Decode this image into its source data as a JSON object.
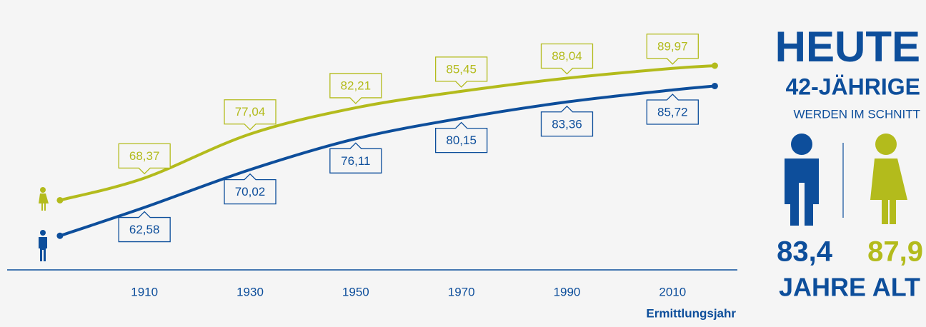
{
  "chart_data": {
    "type": "line",
    "x": [
      1894,
      1910,
      1930,
      1950,
      1970,
      1990,
      2010,
      2018
    ],
    "xlim": [
      1884,
      2022
    ],
    "xticks": [
      1910,
      1930,
      1950,
      1970,
      1990,
      2010
    ],
    "ylim": [
      50,
      95
    ],
    "x_label": "Ermittlungsjahr",
    "series": [
      {
        "color": "#b3bb1c",
        "values": [
          64,
          68.37,
          77.04,
          82.21,
          85.45,
          88.04,
          89.97,
          90.5
        ],
        "value_labels": [
          null,
          "68,37",
          "77,04",
          "82,21",
          "85,45",
          "88,04",
          "89,97",
          null
        ]
      },
      {
        "color": "#0d4e9b",
        "values": [
          57,
          62.58,
          70.02,
          76.11,
          80.15,
          83.36,
          85.72,
          86.5
        ],
        "value_labels": [
          null,
          "62,58",
          "70,02",
          "76,11",
          "80,15",
          "83,36",
          "85,72",
          null
        ]
      }
    ]
  },
  "panel": {
    "title": "HEUTE",
    "subtitle": "42-JÄHRIGE",
    "caption": "WERDEN IM SCHNITT",
    "men": "83,4",
    "women": "87,9",
    "footer": "JAHRE ALT"
  }
}
